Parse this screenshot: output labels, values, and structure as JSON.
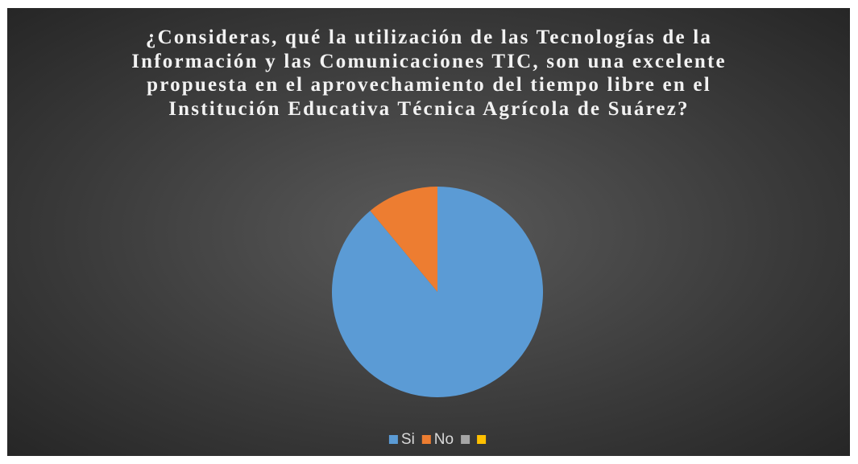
{
  "chart_data": {
    "type": "pie",
    "title": "¿Consideras, qué la utilización de las Tecnologías de la Información y las Comunicaciones TIC, son una excelente propuesta en el aprovechamiento del tiempo libre en el Institución Educativa Técnica Agrícola de Suárez?",
    "categories": [
      "Si",
      "No",
      null,
      null
    ],
    "values": [
      89,
      11,
      0,
      0
    ],
    "colors": [
      "#5b9bd5",
      "#ed7d31",
      "#a5a5a5",
      "#ffc000"
    ],
    "legend": "bottom"
  }
}
